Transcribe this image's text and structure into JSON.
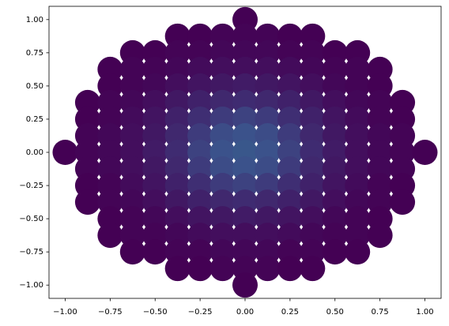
{
  "chart_data": {
    "type": "scatter",
    "colormap": "viridis",
    "xlim": [
      -1.09,
      1.09
    ],
    "ylim": [
      -1.1,
      1.1
    ],
    "xticks": [
      {
        "value": -1,
        "label": "−1.00"
      },
      {
        "value": -0.75,
        "label": "−0.75"
      },
      {
        "value": -0.5,
        "label": "−0.50"
      },
      {
        "value": -0.25,
        "label": "−0.25"
      },
      {
        "value": 0,
        "label": "0.00"
      },
      {
        "value": 0.25,
        "label": "0.25"
      },
      {
        "value": 0.5,
        "label": "0.50"
      },
      {
        "value": 0.75,
        "label": "0.75"
      },
      {
        "value": 1,
        "label": "1.00"
      }
    ],
    "yticks": [
      {
        "value": -1,
        "label": "−1.00"
      },
      {
        "value": -0.75,
        "label": "−0.75"
      },
      {
        "value": -0.5,
        "label": "−0.50"
      },
      {
        "value": -0.25,
        "label": "−0.25"
      },
      {
        "value": 0,
        "label": "0.00"
      },
      {
        "value": 0.25,
        "label": "0.25"
      },
      {
        "value": 0.5,
        "label": "0.50"
      },
      {
        "value": 0.75,
        "label": "0.75"
      },
      {
        "value": 1,
        "label": "1.00"
      }
    ],
    "x": [
      0,
      -0.375,
      -0.25,
      -0.125,
      0,
      0.125,
      0.25,
      0.375,
      -0.625,
      -0.5,
      -0.375,
      -0.25,
      -0.125,
      0,
      0.125,
      0.25,
      0.375,
      0.5,
      0.625,
      -0.75,
      -0.625,
      -0.5,
      -0.375,
      -0.25,
      -0.125,
      0,
      0.125,
      0.25,
      0.375,
      0.5,
      0.625,
      0.75,
      -0.75,
      -0.625,
      -0.5,
      -0.375,
      -0.25,
      -0.125,
      0,
      0.125,
      0.25,
      0.375,
      0.5,
      0.625,
      0.75,
      -0.875,
      -0.75,
      -0.625,
      -0.5,
      -0.375,
      -0.25,
      -0.125,
      0,
      0.125,
      0.25,
      0.375,
      0.5,
      0.625,
      0.75,
      0.875,
      -0.875,
      -0.75,
      -0.625,
      -0.5,
      -0.375,
      -0.25,
      -0.125,
      0,
      0.125,
      0.25,
      0.375,
      0.5,
      0.625,
      0.75,
      0.875,
      -0.875,
      -0.75,
      -0.625,
      -0.5,
      -0.375,
      -0.25,
      -0.125,
      0,
      0.125,
      0.25,
      0.375,
      0.5,
      0.625,
      0.75,
      0.875,
      -1,
      -0.875,
      -0.75,
      -0.625,
      -0.5,
      -0.375,
      -0.25,
      -0.125,
      0,
      0.125,
      0.25,
      0.375,
      0.5,
      0.625,
      0.75,
      0.875,
      1,
      -0.875,
      -0.75,
      -0.625,
      -0.5,
      -0.375,
      -0.25,
      -0.125,
      0,
      0.125,
      0.25,
      0.375,
      0.5,
      0.625,
      0.75,
      0.875,
      -0.875,
      -0.75,
      -0.625,
      -0.5,
      -0.375,
      -0.25,
      -0.125,
      0,
      0.125,
      0.25,
      0.375,
      0.5,
      0.625,
      0.75,
      0.875,
      -0.875,
      -0.75,
      -0.625,
      -0.5,
      -0.375,
      -0.25,
      -0.125,
      0,
      0.125,
      0.25,
      0.375,
      0.5,
      0.625,
      0.75,
      0.875,
      -0.75,
      -0.625,
      -0.5,
      -0.375,
      -0.25,
      -0.125,
      0,
      0.125,
      0.25,
      0.375,
      0.5,
      0.625,
      0.75,
      -0.75,
      -0.625,
      -0.5,
      -0.375,
      -0.25,
      -0.125,
      0,
      0.125,
      0.25,
      0.375,
      0.5,
      0.625,
      0.75,
      -0.625,
      -0.5,
      -0.375,
      -0.25,
      -0.125,
      0,
      0.125,
      0.25,
      0.375,
      0.5,
      0.625,
      -0.375,
      -0.25,
      -0.125,
      0,
      0.125,
      0.25,
      0.375,
      0
    ],
    "y": [
      1,
      0.875,
      0.875,
      0.875,
      0.875,
      0.875,
      0.875,
      0.875,
      0.75,
      0.75,
      0.75,
      0.75,
      0.75,
      0.75,
      0.75,
      0.75,
      0.75,
      0.75,
      0.75,
      0.625,
      0.625,
      0.625,
      0.625,
      0.625,
      0.625,
      0.625,
      0.625,
      0.625,
      0.625,
      0.625,
      0.625,
      0.625,
      0.5,
      0.5,
      0.5,
      0.5,
      0.5,
      0.5,
      0.5,
      0.5,
      0.5,
      0.5,
      0.5,
      0.5,
      0.5,
      0.375,
      0.375,
      0.375,
      0.375,
      0.375,
      0.375,
      0.375,
      0.375,
      0.375,
      0.375,
      0.375,
      0.375,
      0.375,
      0.375,
      0.375,
      0.25,
      0.25,
      0.25,
      0.25,
      0.25,
      0.25,
      0.25,
      0.25,
      0.25,
      0.25,
      0.25,
      0.25,
      0.25,
      0.25,
      0.25,
      0.125,
      0.125,
      0.125,
      0.125,
      0.125,
      0.125,
      0.125,
      0.125,
      0.125,
      0.125,
      0.125,
      0.125,
      0.125,
      0.125,
      0.125,
      0,
      0,
      0,
      0,
      0,
      0,
      0,
      0,
      0,
      0,
      0,
      0,
      0,
      0,
      0,
      0,
      0,
      -0.125,
      -0.125,
      -0.125,
      -0.125,
      -0.125,
      -0.125,
      -0.125,
      -0.125,
      -0.125,
      -0.125,
      -0.125,
      -0.125,
      -0.125,
      -0.125,
      -0.125,
      -0.25,
      -0.25,
      -0.25,
      -0.25,
      -0.25,
      -0.25,
      -0.25,
      -0.25,
      -0.25,
      -0.25,
      -0.25,
      -0.25,
      -0.25,
      -0.25,
      -0.25,
      -0.375,
      -0.375,
      -0.375,
      -0.375,
      -0.375,
      -0.375,
      -0.375,
      -0.375,
      -0.375,
      -0.375,
      -0.375,
      -0.375,
      -0.375,
      -0.375,
      -0.375,
      -0.5,
      -0.5,
      -0.5,
      -0.5,
      -0.5,
      -0.5,
      -0.5,
      -0.5,
      -0.5,
      -0.5,
      -0.5,
      -0.5,
      -0.5,
      -0.625,
      -0.625,
      -0.625,
      -0.625,
      -0.625,
      -0.625,
      -0.625,
      -0.625,
      -0.625,
      -0.625,
      -0.625,
      -0.625,
      -0.625,
      -0.75,
      -0.75,
      -0.75,
      -0.75,
      -0.75,
      -0.75,
      -0.75,
      -0.75,
      -0.75,
      -0.75,
      -0.75,
      -0.875,
      -0.875,
      -0.875,
      -0.875,
      -0.875,
      -0.875,
      -0.875,
      -1
    ],
    "c": [
      0,
      0,
      0,
      0.01,
      0.01,
      0.01,
      0,
      0,
      0,
      0,
      0.01,
      0.01,
      0.02,
      0.02,
      0.02,
      0.01,
      0.01,
      0,
      0,
      0,
      0.01,
      0.01,
      0.02,
      0.03,
      0.04,
      0.04,
      0.04,
      0.03,
      0.02,
      0.01,
      0.01,
      0,
      0,
      0.01,
      0.02,
      0.04,
      0.06,
      0.07,
      0.08,
      0.07,
      0.06,
      0.04,
      0.02,
      0.01,
      0,
      0,
      0.01,
      0.02,
      0.04,
      0.07,
      0.1,
      0.12,
      0.13,
      0.12,
      0.1,
      0.07,
      0.04,
      0.02,
      0.01,
      0,
      0,
      0.01,
      0.03,
      0.06,
      0.1,
      0.14,
      0.18,
      0.2,
      0.18,
      0.14,
      0.1,
      0.06,
      0.03,
      0.01,
      0,
      0.01,
      0.02,
      0.04,
      0.07,
      0.12,
      0.18,
      0.23,
      0.25,
      0.23,
      0.18,
      0.12,
      0.07,
      0.04,
      0.02,
      0.01,
      0,
      0.01,
      0.02,
      0.04,
      0.08,
      0.13,
      0.2,
      0.25,
      0.27,
      0.25,
      0.2,
      0.13,
      0.08,
      0.04,
      0.02,
      0.01,
      0,
      0.01,
      0.02,
      0.04,
      0.07,
      0.12,
      0.18,
      0.23,
      0.25,
      0.23,
      0.18,
      0.12,
      0.07,
      0.04,
      0.02,
      0.01,
      0,
      0.01,
      0.03,
      0.06,
      0.1,
      0.14,
      0.18,
      0.2,
      0.18,
      0.14,
      0.1,
      0.06,
      0.03,
      0.01,
      0,
      0,
      0.01,
      0.02,
      0.04,
      0.07,
      0.1,
      0.12,
      0.13,
      0.12,
      0.1,
      0.07,
      0.04,
      0.02,
      0.01,
      0,
      0,
      0.01,
      0.02,
      0.04,
      0.06,
      0.07,
      0.08,
      0.07,
      0.06,
      0.04,
      0.02,
      0.01,
      0,
      0,
      0.01,
      0.01,
      0.02,
      0.03,
      0.04,
      0.04,
      0.04,
      0.03,
      0.02,
      0.01,
      0.01,
      0,
      0,
      0,
      0.01,
      0.01,
      0.02,
      0.02,
      0.02,
      0.01,
      0.01,
      0,
      0,
      0,
      0,
      0.01,
      0.01,
      0.01,
      0,
      0,
      0
    ]
  }
}
